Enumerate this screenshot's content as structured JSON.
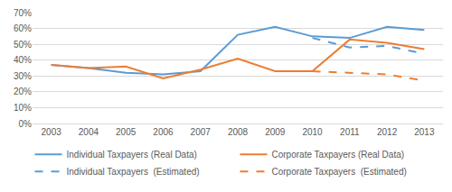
{
  "chart_data": {
    "type": "line",
    "categories": [
      "2003",
      "2004",
      "2005",
      "2006",
      "2007",
      "2008",
      "2009",
      "2010",
      "2011",
      "2012",
      "2013"
    ],
    "series": [
      {
        "name": "Individual Taxpayers (Real Data)",
        "color": "#5b9bd5",
        "line_style": "solid",
        "values": [
          37,
          35,
          32,
          31,
          33,
          56,
          61,
          55,
          54,
          61,
          59
        ]
      },
      {
        "name": "Corporate Taxpayers (Real Data)",
        "color": "#ed7d31",
        "line_style": "solid",
        "values": [
          37,
          35,
          36,
          28.5,
          34,
          41,
          33,
          33,
          53,
          51,
          47
        ]
      },
      {
        "name": "Individual Taxpayers  (Estimated)",
        "color": "#5b9bd5",
        "line_style": "dashed",
        "values": [
          null,
          null,
          null,
          null,
          null,
          null,
          null,
          54,
          48,
          49,
          44
        ]
      },
      {
        "name": "Corporate Taxpayers  (Estimated)",
        "color": "#ed7d31",
        "line_style": "dashed",
        "values": [
          null,
          null,
          null,
          null,
          null,
          null,
          null,
          33,
          32,
          31,
          27
        ]
      }
    ],
    "ylim": [
      0,
      70
    ],
    "yticks": [
      {
        "value": 0,
        "label": "0%"
      },
      {
        "value": 10,
        "label": "10%"
      },
      {
        "value": 20,
        "label": "20%"
      },
      {
        "value": 30,
        "label": "30%"
      },
      {
        "value": 40,
        "label": "40%"
      },
      {
        "value": 50,
        "label": "50%"
      },
      {
        "value": 60,
        "label": "60%"
      },
      {
        "value": 70,
        "label": "70%"
      }
    ],
    "grid": true,
    "legend": "bottom"
  }
}
